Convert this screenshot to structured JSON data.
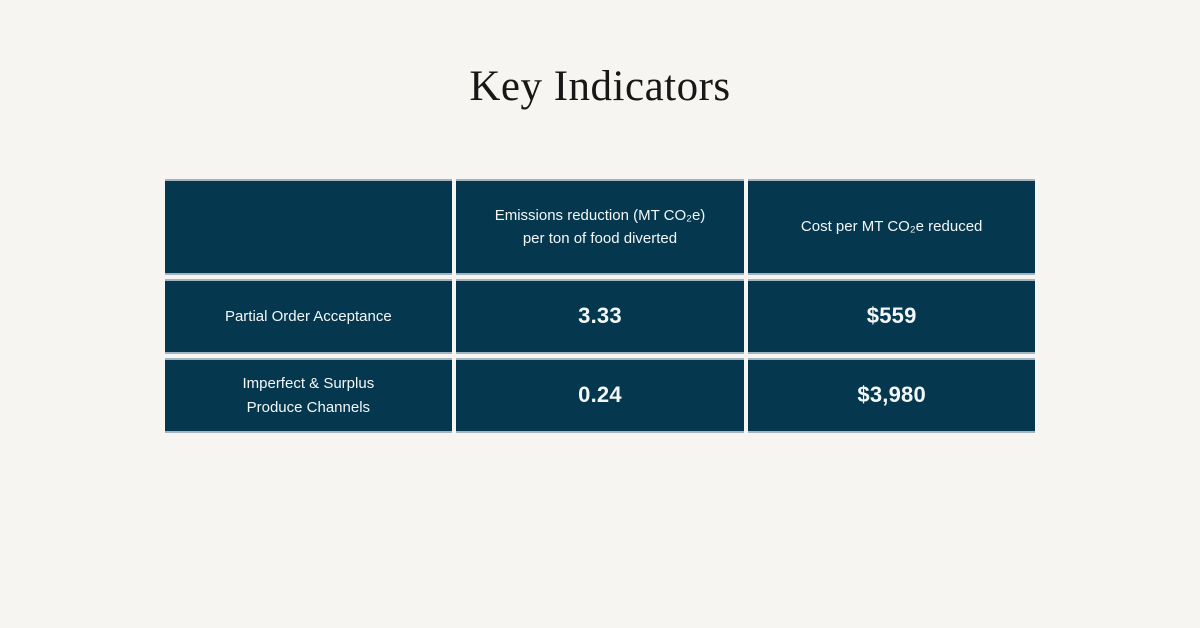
{
  "title": "Key Indicators",
  "colors": {
    "background": "#f6f5f2",
    "cell_background": "#05384f",
    "cell_text": "#f3f7f8",
    "title_text": "#171717",
    "cell_gap": "#fbfbf9",
    "cell_edge_line": "#becbd3"
  },
  "table": {
    "columns": [
      "",
      "Emissions reduction (MT CO₂e)\nper ton of food diverted",
      "Cost per MT CO₂e reduced"
    ],
    "rows": [
      {
        "label": "Partial Order Acceptance",
        "emissions": "3.33",
        "cost": "$559"
      },
      {
        "label": "Imperfect & Surplus\nProduce Channels",
        "emissions": "0.24",
        "cost": "$3,980"
      }
    ]
  },
  "chart_data": {
    "type": "table",
    "title": "Key Indicators",
    "columns": [
      "",
      "Emissions reduction (MT CO₂e) per ton of food diverted",
      "Cost per MT CO₂e reduced"
    ],
    "rows": [
      {
        "label": "Partial Order Acceptance",
        "emissions_reduction_mt_co2e_per_ton_diverted": 3.33,
        "cost_per_mt_co2e_reduced_usd": 559
      },
      {
        "label": "Imperfect & Surplus Produce Channels",
        "emissions_reduction_mt_co2e_per_ton_diverted": 0.24,
        "cost_per_mt_co2e_reduced_usd": 3980
      }
    ]
  }
}
